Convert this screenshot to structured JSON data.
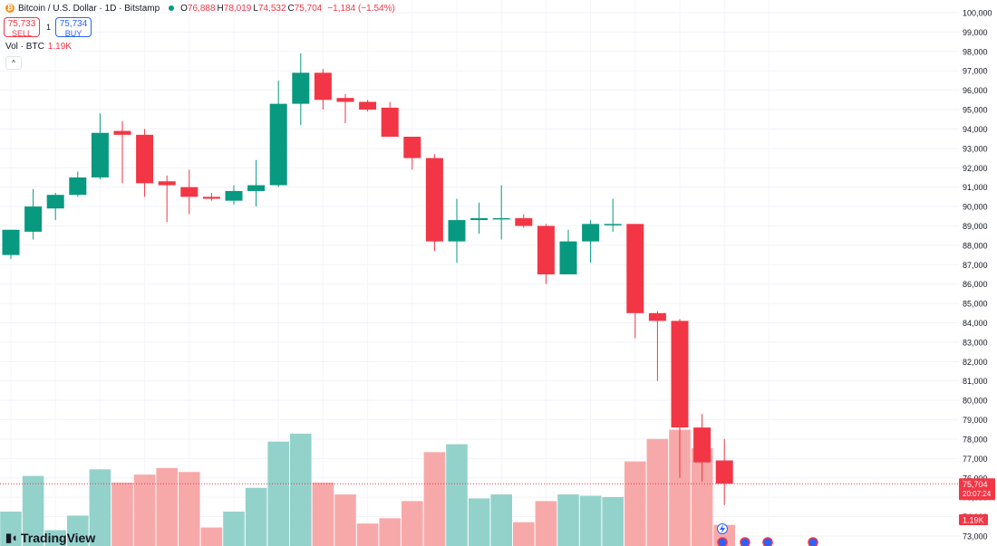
{
  "header": {
    "symbol_title": "Bitcoin / U.S. Dollar · 1D · Bitstamp",
    "coin_icon_glyph": "₿",
    "ohlc": [
      {
        "label": "O",
        "value": "76,888"
      },
      {
        "label": "H",
        "value": "78,019"
      },
      {
        "label": "L",
        "value": "74,532"
      },
      {
        "label": "C",
        "value": "75,704"
      }
    ],
    "change": "−1,184 (−1.54%)"
  },
  "trade": {
    "sell_price": "75,733",
    "sell_label": "SELL",
    "spread": "1",
    "buy_price": "75,734",
    "buy_label": "BUY"
  },
  "volume_legend": {
    "label": "Vol · BTC",
    "value": "1.19K"
  },
  "collapse_glyph": "^",
  "branding": {
    "logo_mark": "▮◖",
    "name": "TradingView"
  },
  "colors": {
    "up": "#089981",
    "down": "#f23645",
    "up_vol": "#93d2cb",
    "down_vol": "#f7a9a9"
  },
  "price_axis": {
    "labels": [
      "100,000",
      "99,000",
      "98,000",
      "97,000",
      "96,000",
      "95,000",
      "94,000",
      "93,000",
      "92,000",
      "91,000",
      "90,000",
      "89,000",
      "88,000",
      "87,000",
      "86,000",
      "85,000",
      "84,000",
      "83,000",
      "82,000",
      "81,000",
      "80,000",
      "79,000",
      "78,000",
      "77,000",
      "76,000",
      "75,000",
      "74,000",
      "73,000"
    ],
    "last_price_label": "75,704",
    "countdown_label": "20:07:24",
    "volume_label": "1.19K"
  },
  "chart_data": {
    "type": "candlestick",
    "ylim": [
      73000,
      100000
    ],
    "grid": true,
    "candles": [
      {
        "o": 87500,
        "h": 88800,
        "l": 87300,
        "c": 88800,
        "v": 0.26
      },
      {
        "o": 88700,
        "h": 90900,
        "l": 88300,
        "c": 90000,
        "v": 0.53
      },
      {
        "o": 89900,
        "h": 90700,
        "l": 89300,
        "c": 90600,
        "v": 0.12
      },
      {
        "o": 90600,
        "h": 91800,
        "l": 90500,
        "c": 91500,
        "v": 0.23
      },
      {
        "o": 91500,
        "h": 94800,
        "l": 91400,
        "c": 93800,
        "v": 0.58
      },
      {
        "o": 93900,
        "h": 94400,
        "l": 91200,
        "c": 93700,
        "v": 0.48
      },
      {
        "o": 93700,
        "h": 94000,
        "l": 90500,
        "c": 91200,
        "v": 0.54
      },
      {
        "o": 91300,
        "h": 91600,
        "l": 89200,
        "c": 91100,
        "v": 0.59
      },
      {
        "o": 91000,
        "h": 91900,
        "l": 89600,
        "c": 90500,
        "v": 0.56
      },
      {
        "o": 90500,
        "h": 90700,
        "l": 90300,
        "c": 90400,
        "v": 0.14
      },
      {
        "o": 90300,
        "h": 91100,
        "l": 90100,
        "c": 90800,
        "v": 0.26
      },
      {
        "o": 90800,
        "h": 92400,
        "l": 90000,
        "c": 91100,
        "v": 0.44
      },
      {
        "o": 91100,
        "h": 96500,
        "l": 91000,
        "c": 95300,
        "v": 0.79
      },
      {
        "o": 95300,
        "h": 97900,
        "l": 94200,
        "c": 96900,
        "v": 0.85
      },
      {
        "o": 96900,
        "h": 97100,
        "l": 95000,
        "c": 95500,
        "v": 0.48
      },
      {
        "o": 95600,
        "h": 95800,
        "l": 94300,
        "c": 95400,
        "v": 0.39
      },
      {
        "o": 95400,
        "h": 95500,
        "l": 94900,
        "c": 95000,
        "v": 0.17
      },
      {
        "o": 95100,
        "h": 95400,
        "l": 93600,
        "c": 93600,
        "v": 0.21
      },
      {
        "o": 93600,
        "h": 93600,
        "l": 91900,
        "c": 92500,
        "v": 0.34
      },
      {
        "o": 92500,
        "h": 92700,
        "l": 87700,
        "c": 88200,
        "v": 0.71
      },
      {
        "o": 88200,
        "h": 90400,
        "l": 87100,
        "c": 89300,
        "v": 0.77
      },
      {
        "o": 89300,
        "h": 90200,
        "l": 88600,
        "c": 89400,
        "v": 0.36
      },
      {
        "o": 89400,
        "h": 91100,
        "l": 88300,
        "c": 89400,
        "v": 0.39
      },
      {
        "o": 89400,
        "h": 89600,
        "l": 88900,
        "c": 89000,
        "v": 0.18
      },
      {
        "o": 89000,
        "h": 89100,
        "l": 86000,
        "c": 86500,
        "v": 0.34
      },
      {
        "o": 86500,
        "h": 88800,
        "l": 86500,
        "c": 88200,
        "v": 0.39
      },
      {
        "o": 88200,
        "h": 89300,
        "l": 87100,
        "c": 89100,
        "v": 0.38
      },
      {
        "o": 89100,
        "h": 90400,
        "l": 88700,
        "c": 89100,
        "v": 0.37
      },
      {
        "o": 89100,
        "h": 89100,
        "l": 83200,
        "c": 84500,
        "v": 0.64
      },
      {
        "o": 84500,
        "h": 84600,
        "l": 81000,
        "c": 84100,
        "v": 0.81
      },
      {
        "o": 84100,
        "h": 84200,
        "l": 76000,
        "c": 78600,
        "v": 0.88
      },
      {
        "o": 78600,
        "h": 79300,
        "l": 75800,
        "c": 76800,
        "v": 0.74
      },
      {
        "o": 76900,
        "h": 78000,
        "l": 74600,
        "c": 75700,
        "v": 0.16
      }
    ]
  }
}
